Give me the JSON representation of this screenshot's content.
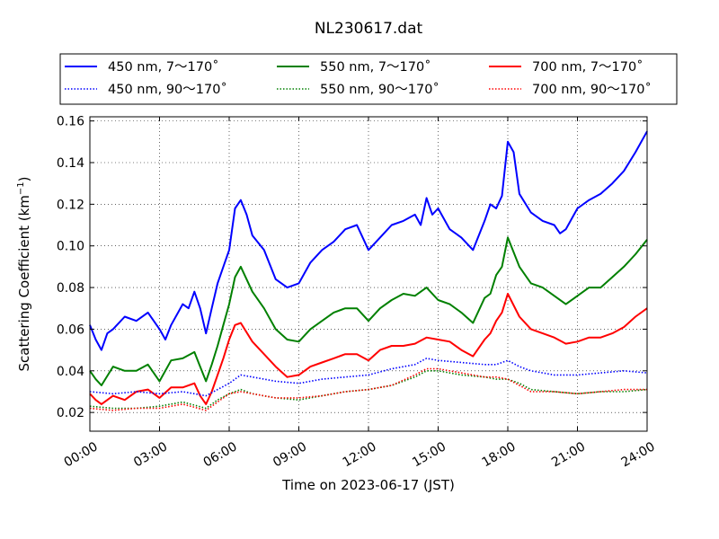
{
  "chart_data": {
    "type": "line",
    "title": "NL230617.dat",
    "xlabel": "Time on 2023-06-17 (JST)",
    "ylabel": "Scattering Coefficient (km",
    "ylabel_sup": "−1",
    "ylabel_close": ")",
    "xlim": [
      0,
      24
    ],
    "ylim": [
      0.011,
      0.162
    ],
    "x_ticks": [
      0,
      3,
      6,
      9,
      12,
      15,
      18,
      21,
      24
    ],
    "x_tick_labels": [
      "00:00",
      "03:00",
      "06:00",
      "09:00",
      "12:00",
      "15:00",
      "18:00",
      "21:00",
      "24:00"
    ],
    "y_ticks": [
      0.02,
      0.04,
      0.06,
      0.08,
      0.1,
      0.12,
      0.14,
      0.16
    ],
    "y_tick_labels": [
      "0.02",
      "0.04",
      "0.06",
      "0.08",
      "0.10",
      "0.12",
      "0.14",
      "0.16"
    ],
    "grid": true,
    "legend_position": "top (above plot)",
    "series": [
      {
        "name": "450 nm, 7～170˚",
        "color": "#0000ff",
        "style": "solid",
        "x": [
          0,
          0.25,
          0.5,
          0.75,
          1,
          1.5,
          2,
          2.5,
          3,
          3.25,
          3.5,
          4,
          4.25,
          4.5,
          4.75,
          5,
          5.25,
          5.5,
          5.75,
          6,
          6.25,
          6.5,
          6.75,
          7,
          7.5,
          8,
          8.5,
          9,
          9.5,
          10,
          10.5,
          11,
          11.5,
          12,
          12.5,
          13,
          13.5,
          14,
          14.25,
          14.5,
          14.75,
          15,
          15.5,
          16,
          16.5,
          17,
          17.25,
          17.5,
          17.75,
          18,
          18.25,
          18.5,
          19,
          19.5,
          20,
          20.25,
          20.5,
          21,
          21.5,
          22,
          22.5,
          23,
          23.5,
          24
        ],
        "y": [
          0.062,
          0.055,
          0.05,
          0.058,
          0.06,
          0.066,
          0.064,
          0.068,
          0.06,
          0.055,
          0.062,
          0.072,
          0.07,
          0.078,
          0.07,
          0.058,
          0.07,
          0.082,
          0.09,
          0.098,
          0.118,
          0.122,
          0.115,
          0.105,
          0.098,
          0.084,
          0.08,
          0.082,
          0.092,
          0.098,
          0.102,
          0.108,
          0.11,
          0.098,
          0.104,
          0.11,
          0.112,
          0.115,
          0.11,
          0.123,
          0.115,
          0.118,
          0.108,
          0.104,
          0.098,
          0.112,
          0.12,
          0.118,
          0.124,
          0.15,
          0.145,
          0.125,
          0.116,
          0.112,
          0.11,
          0.106,
          0.108,
          0.118,
          0.122,
          0.125,
          0.13,
          0.136,
          0.145,
          0.155
        ]
      },
      {
        "name": "450 nm, 90～170˚",
        "color": "#0000ff",
        "style": "dotted",
        "x": [
          0,
          1,
          2,
          3,
          4,
          5,
          5.5,
          6,
          6.5,
          7,
          8,
          9,
          10,
          11,
          12,
          13,
          14,
          14.5,
          15,
          16,
          17,
          17.5,
          18,
          18.5,
          19,
          20,
          21,
          22,
          23,
          24
        ],
        "y": [
          0.03,
          0.029,
          0.03,
          0.029,
          0.03,
          0.028,
          0.031,
          0.034,
          0.038,
          0.037,
          0.035,
          0.034,
          0.036,
          0.037,
          0.038,
          0.041,
          0.043,
          0.046,
          0.045,
          0.044,
          0.043,
          0.043,
          0.045,
          0.042,
          0.04,
          0.038,
          0.038,
          0.039,
          0.04,
          0.039
        ]
      },
      {
        "name": "550 nm, 7～170˚",
        "color": "#008000",
        "style": "solid",
        "x": [
          0,
          0.25,
          0.5,
          1,
          1.5,
          2,
          2.5,
          3,
          3.5,
          4,
          4.5,
          4.75,
          5,
          5.25,
          5.5,
          5.75,
          6,
          6.25,
          6.5,
          7,
          7.5,
          8,
          8.5,
          9,
          9.5,
          10,
          10.5,
          11,
          11.5,
          12,
          12.5,
          13,
          13.5,
          14,
          14.5,
          15,
          15.5,
          16,
          16.5,
          17,
          17.25,
          17.5,
          17.75,
          18,
          18.5,
          19,
          19.5,
          20,
          20.5,
          21,
          21.5,
          22,
          22.5,
          23,
          23.5,
          24
        ],
        "y": [
          0.04,
          0.036,
          0.033,
          0.042,
          0.04,
          0.04,
          0.043,
          0.035,
          0.045,
          0.046,
          0.049,
          0.042,
          0.035,
          0.043,
          0.052,
          0.062,
          0.072,
          0.085,
          0.09,
          0.078,
          0.07,
          0.06,
          0.055,
          0.054,
          0.06,
          0.064,
          0.068,
          0.07,
          0.07,
          0.064,
          0.07,
          0.074,
          0.077,
          0.076,
          0.08,
          0.074,
          0.072,
          0.068,
          0.063,
          0.075,
          0.077,
          0.086,
          0.09,
          0.104,
          0.09,
          0.082,
          0.08,
          0.076,
          0.072,
          0.076,
          0.08,
          0.08,
          0.085,
          0.09,
          0.096,
          0.103
        ]
      },
      {
        "name": "550 nm, 90～170˚",
        "color": "#008000",
        "style": "dotted",
        "x": [
          0,
          1,
          2,
          3,
          4,
          5,
          5.5,
          6,
          6.5,
          7,
          8,
          9,
          10,
          11,
          12,
          13,
          14,
          14.5,
          15,
          16,
          17,
          17.5,
          18,
          18.5,
          19,
          20,
          21,
          22,
          23,
          24
        ],
        "y": [
          0.023,
          0.022,
          0.022,
          0.023,
          0.025,
          0.022,
          0.026,
          0.029,
          0.031,
          0.029,
          0.027,
          0.026,
          0.028,
          0.03,
          0.031,
          0.033,
          0.037,
          0.04,
          0.04,
          0.038,
          0.037,
          0.036,
          0.036,
          0.034,
          0.031,
          0.03,
          0.029,
          0.03,
          0.03,
          0.031
        ]
      },
      {
        "name": "700 nm, 7～170˚",
        "color": "#ff0000",
        "style": "solid",
        "x": [
          0,
          0.25,
          0.5,
          1,
          1.5,
          2,
          2.5,
          3,
          3.5,
          4,
          4.5,
          4.75,
          5,
          5.25,
          5.5,
          5.75,
          6,
          6.25,
          6.5,
          7,
          7.5,
          8,
          8.5,
          9,
          9.5,
          10,
          10.5,
          11,
          11.5,
          12,
          12.5,
          13,
          13.5,
          14,
          14.5,
          15,
          15.5,
          16,
          16.5,
          17,
          17.25,
          17.5,
          17.75,
          18,
          18.5,
          19,
          19.5,
          20,
          20.5,
          21,
          21.5,
          22,
          22.5,
          23,
          23.5,
          24
        ],
        "y": [
          0.029,
          0.026,
          0.024,
          0.028,
          0.026,
          0.03,
          0.031,
          0.027,
          0.032,
          0.032,
          0.034,
          0.028,
          0.024,
          0.03,
          0.038,
          0.046,
          0.055,
          0.062,
          0.063,
          0.054,
          0.048,
          0.042,
          0.037,
          0.038,
          0.042,
          0.044,
          0.046,
          0.048,
          0.048,
          0.045,
          0.05,
          0.052,
          0.052,
          0.053,
          0.056,
          0.055,
          0.054,
          0.05,
          0.047,
          0.055,
          0.058,
          0.064,
          0.068,
          0.077,
          0.066,
          0.06,
          0.058,
          0.056,
          0.053,
          0.054,
          0.056,
          0.056,
          0.058,
          0.061,
          0.066,
          0.07
        ]
      },
      {
        "name": "700 nm, 90～170˚",
        "color": "#ff0000",
        "style": "dotted",
        "x": [
          0,
          1,
          2,
          3,
          4,
          5,
          5.5,
          6,
          6.5,
          7,
          8,
          9,
          10,
          11,
          12,
          13,
          14,
          14.5,
          15,
          16,
          17,
          17.5,
          18,
          18.5,
          19,
          20,
          21,
          22,
          23,
          24
        ],
        "y": [
          0.022,
          0.021,
          0.022,
          0.022,
          0.024,
          0.021,
          0.025,
          0.029,
          0.03,
          0.029,
          0.027,
          0.027,
          0.028,
          0.03,
          0.031,
          0.033,
          0.038,
          0.041,
          0.041,
          0.039,
          0.037,
          0.037,
          0.036,
          0.033,
          0.03,
          0.03,
          0.029,
          0.03,
          0.031,
          0.031
        ]
      }
    ]
  }
}
